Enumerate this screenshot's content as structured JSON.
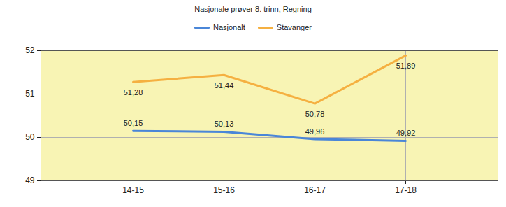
{
  "chart_data": {
    "type": "line",
    "title": "Nasjonale prøver 8. trinn, Regning",
    "categories": [
      "14-15",
      "15-16",
      "16-17",
      "17-18"
    ],
    "series": [
      {
        "name": "Nasjonalt",
        "color": "#4a86d8",
        "values": [
          50.15,
          50.13,
          49.96,
          49.92
        ],
        "value_labels": [
          "50,15",
          "50,13",
          "49,96",
          "49,92"
        ]
      },
      {
        "name": "Stavanger",
        "color": "#f5b041",
        "values": [
          51.28,
          51.44,
          50.78,
          51.89
        ],
        "value_labels": [
          "51,28",
          "51,44",
          "50,78",
          "51,89"
        ]
      }
    ],
    "ylim": [
      49,
      52
    ],
    "yticks": [
      49,
      50,
      51,
      52
    ],
    "grid": true,
    "data_labels": true,
    "legend": "top"
  }
}
